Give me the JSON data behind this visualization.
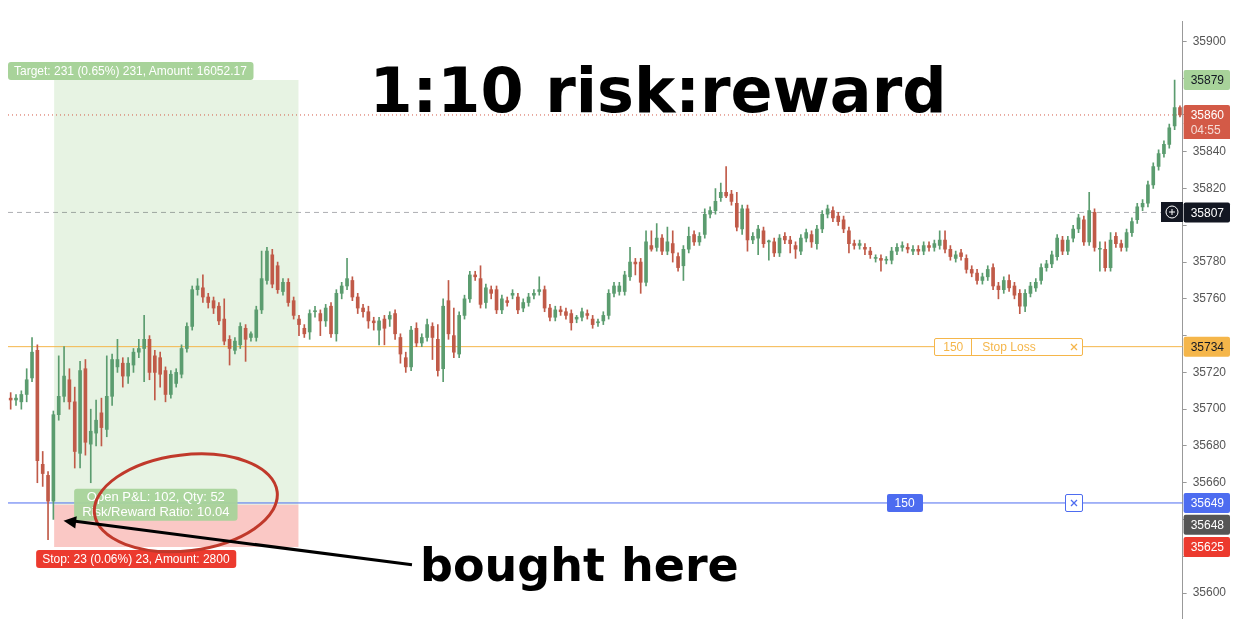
{
  "chart_data": {
    "type": "candlestick",
    "title": "1:10 risk:reward",
    "categories": [
      null,
      null,
      null,
      null,
      null,
      null,
      null,
      null,
      null,
      null,
      null,
      null,
      null,
      null,
      null,
      null,
      null,
      null,
      null,
      null,
      null,
      null,
      null,
      null,
      null,
      null,
      null,
      null,
      null,
      null,
      null,
      null,
      null,
      null,
      null,
      null,
      null,
      null,
      null,
      null,
      null,
      null,
      null,
      null,
      null,
      null,
      null,
      null,
      null,
      null,
      null,
      null,
      null,
      null,
      null,
      null,
      null,
      null,
      null,
      null,
      null,
      null,
      null,
      null,
      null,
      null,
      null,
      null,
      null,
      null,
      null,
      null,
      null,
      null,
      null,
      null,
      null,
      null,
      null,
      null,
      null,
      null,
      null,
      null,
      null,
      null,
      null,
      null,
      null,
      null,
      null,
      null,
      null,
      null,
      null,
      null,
      null,
      null,
      null,
      null,
      null,
      null,
      null,
      null,
      null,
      null,
      null,
      null,
      null,
      null,
      null,
      null,
      null,
      null,
      null,
      null,
      null,
      null,
      null,
      null,
      null,
      null,
      null,
      null,
      null,
      null,
      null,
      null,
      null,
      null,
      null,
      null,
      null,
      null,
      null,
      null,
      null,
      null,
      null,
      null,
      null,
      null,
      null,
      null,
      null,
      null,
      null,
      null,
      null,
      null,
      null,
      null,
      null,
      null,
      null,
      null,
      null,
      null,
      null,
      null,
      null,
      null,
      null,
      null,
      null,
      null,
      null,
      null,
      null,
      null,
      null,
      null,
      null,
      null,
      null,
      null,
      null,
      null,
      null,
      null,
      null,
      null,
      null,
      null,
      null,
      null,
      null,
      null,
      null,
      null,
      null,
      null,
      null,
      null,
      null,
      null,
      null,
      null,
      null,
      null,
      null,
      null,
      null,
      null,
      null,
      null,
      null,
      null,
      null,
      null,
      null,
      null,
      null,
      null,
      null,
      null,
      null,
      null,
      null,
      null
    ],
    "ohlc": [
      [
        35706,
        35709,
        35700,
        35705
      ],
      [
        35705,
        35708,
        35702,
        35706
      ],
      [
        35704,
        35710,
        35700,
        35708
      ],
      [
        35708,
        35722,
        35704,
        35716
      ],
      [
        35717,
        35739,
        35715,
        35731
      ],
      [
        35732,
        35735,
        35660,
        35672
      ],
      [
        35670,
        35677,
        35658,
        35665
      ],
      [
        35664,
        35666,
        35629,
        35650
      ],
      [
        35650,
        35699,
        35640,
        35697
      ],
      [
        35697,
        35729,
        35694,
        35707
      ],
      [
        35707,
        35734,
        35704,
        35718
      ],
      [
        35716,
        35722,
        35700,
        35704
      ],
      [
        35704,
        35712,
        35668,
        35677
      ],
      [
        35676,
        35726,
        35668,
        35721
      ],
      [
        35722,
        35727,
        35675,
        35682
      ],
      [
        35681,
        35700,
        35660,
        35688
      ],
      [
        35687,
        35705,
        35680,
        35694
      ],
      [
        35698,
        35706,
        35680,
        35690
      ],
      [
        35689,
        35729,
        35685,
        35707
      ],
      [
        35707,
        35730,
        35702,
        35727
      ],
      [
        35723,
        35738,
        35720,
        35727
      ],
      [
        35725,
        35728,
        35712,
        35718
      ],
      [
        35718,
        35728,
        35714,
        35725
      ],
      [
        35724,
        35733,
        35720,
        35731
      ],
      [
        35731,
        35738,
        35728,
        35733
      ],
      [
        35733,
        35751,
        35715,
        35738
      ],
      [
        35738,
        35740,
        35716,
        35720
      ],
      [
        35729,
        35732,
        35705,
        35720
      ],
      [
        35728,
        35731,
        35712,
        35719
      ],
      [
        35721,
        35723,
        35704,
        35708
      ],
      [
        35708,
        35721,
        35706,
        35719
      ],
      [
        35714,
        35722,
        35712,
        35720
      ],
      [
        35719,
        35735,
        35717,
        35733
      ],
      [
        35733,
        35747,
        35731,
        35745
      ],
      [
        35745,
        35767,
        35743,
        35765
      ],
      [
        35765,
        35771,
        35762,
        35767
      ],
      [
        35766,
        35773,
        35758,
        35761
      ],
      [
        35761,
        35763,
        35755,
        35758
      ],
      [
        35759,
        35761,
        35752,
        35755
      ],
      [
        35756,
        35758,
        35746,
        35748
      ],
      [
        35749,
        35760,
        35735,
        35737
      ],
      [
        35738,
        35740,
        35724,
        35733
      ],
      [
        35732,
        35739,
        35730,
        35737
      ],
      [
        35735,
        35747,
        35733,
        35745
      ],
      [
        35744,
        35746,
        35726,
        35738
      ],
      [
        35739,
        35742,
        35737,
        35741
      ],
      [
        35739,
        35756,
        35737,
        35754
      ],
      [
        35754,
        35786,
        35752,
        35771
      ],
      [
        35770,
        35788,
        35768,
        35786
      ],
      [
        35784,
        35787,
        35766,
        35768
      ],
      [
        35778,
        35780,
        35763,
        35765
      ],
      [
        35764,
        35771,
        35762,
        35769
      ],
      [
        35769,
        35771,
        35756,
        35758
      ],
      [
        35759,
        35761,
        35749,
        35751
      ],
      [
        35749,
        35751,
        35740,
        35746
      ],
      [
        35744,
        35746,
        35739,
        35741
      ],
      [
        35742,
        35754,
        35738,
        35752
      ],
      [
        35753,
        35756,
        35750,
        35753
      ],
      [
        35752,
        35754,
        35740,
        35748
      ],
      [
        35748,
        35757,
        35745,
        35755
      ],
      [
        35756,
        35758,
        35739,
        35741
      ],
      [
        35741,
        35765,
        35737,
        35763
      ],
      [
        35763,
        35769,
        35760,
        35767
      ],
      [
        35767,
        35782,
        35765,
        35771
      ],
      [
        35770,
        35772,
        35759,
        35761
      ],
      [
        35761,
        35763,
        35752,
        35755
      ],
      [
        35755,
        35757,
        35750,
        35753
      ],
      [
        35753,
        35756,
        35744,
        35748
      ],
      [
        35748,
        35750,
        35743,
        35747
      ],
      [
        35743,
        35750,
        35735,
        35748
      ],
      [
        35749,
        35751,
        35735,
        35744
      ],
      [
        35749,
        35753,
        35745,
        35751
      ],
      [
        35752,
        35754,
        35738,
        35741
      ],
      [
        35739,
        35741,
        35725,
        35730
      ],
      [
        35728,
        35731,
        35720,
        35723
      ],
      [
        35723,
        35745,
        35721,
        35743
      ],
      [
        35744,
        35747,
        35734,
        35736
      ],
      [
        35736,
        35741,
        35734,
        35739
      ],
      [
        35739,
        35749,
        35737,
        35746
      ],
      [
        35745,
        35747,
        35727,
        35739
      ],
      [
        35738,
        35746,
        35718,
        35721
      ],
      [
        35722,
        35760,
        35715,
        35756
      ],
      [
        35759,
        35770,
        35738,
        35741
      ],
      [
        35740,
        35755,
        35728,
        35731
      ],
      [
        35730,
        35753,
        35728,
        35751
      ],
      [
        35751,
        35762,
        35749,
        35760
      ],
      [
        35760,
        35775,
        35758,
        35773
      ],
      [
        35773,
        35775,
        35770,
        35772
      ],
      [
        35771,
        35778,
        35755,
        35757
      ],
      [
        35758,
        35768,
        35755,
        35766
      ],
      [
        35765,
        35767,
        35760,
        35763
      ],
      [
        35765,
        35767,
        35752,
        35754
      ],
      [
        35754,
        35762,
        35752,
        35760
      ],
      [
        35759,
        35761,
        35756,
        35758
      ],
      [
        35762,
        35765,
        35760,
        35763
      ],
      [
        35761,
        35763,
        35752,
        35754
      ],
      [
        35755,
        35760,
        35753,
        35758
      ],
      [
        35758,
        35763,
        35756,
        35761
      ],
      [
        35762,
        35765,
        35760,
        35763
      ],
      [
        35764,
        35772,
        35762,
        35765
      ],
      [
        35765,
        35767,
        35753,
        35755
      ],
      [
        35755,
        35757,
        35748,
        35750
      ],
      [
        35750,
        35756,
        35748,
        35754
      ],
      [
        35754,
        35756,
        35751,
        35753
      ],
      [
        35753,
        35755,
        35749,
        35751
      ],
      [
        35752,
        35754,
        35743,
        35747
      ],
      [
        35749,
        35751,
        35747,
        35750
      ],
      [
        35750,
        35755,
        35748,
        35753
      ],
      [
        35752,
        35754,
        35749,
        35751
      ],
      [
        35749,
        35751,
        35744,
        35746
      ],
      [
        35747,
        35749,
        35745,
        35747
      ],
      [
        35748,
        35753,
        35746,
        35751
      ],
      [
        35751,
        35765,
        35749,
        35763
      ],
      [
        35763,
        35769,
        35761,
        35767
      ],
      [
        35764,
        35769,
        35762,
        35767
      ],
      [
        35764,
        35775,
        35762,
        35773
      ],
      [
        35772,
        35788,
        35770,
        35780
      ],
      [
        35780,
        35782,
        35773,
        35779
      ],
      [
        35780,
        35782,
        35763,
        35769
      ],
      [
        35769,
        35797,
        35767,
        35791
      ],
      [
        35789,
        35797,
        35786,
        35787
      ],
      [
        35788,
        35801,
        35786,
        35793
      ],
      [
        35793,
        35795,
        35784,
        35786
      ],
      [
        35786,
        35799,
        35784,
        35791
      ],
      [
        35790,
        35797,
        35780,
        35785
      ],
      [
        35783,
        35785,
        35775,
        35777
      ],
      [
        35778,
        35789,
        35770,
        35787
      ],
      [
        35787,
        35799,
        35785,
        35794
      ],
      [
        35795,
        35797,
        35789,
        35791
      ],
      [
        35791,
        35796,
        35789,
        35794
      ],
      [
        35795,
        35809,
        35793,
        35806
      ],
      [
        35806,
        35810,
        35804,
        35808
      ],
      [
        35808,
        35820,
        35806,
        35813
      ],
      [
        35815,
        35823,
        35813,
        35818
      ],
      [
        35818,
        35832,
        35815,
        35816
      ],
      [
        35817,
        35819,
        35811,
        35813
      ],
      [
        35812,
        35818,
        35797,
        35799
      ],
      [
        35798,
        35811,
        35795,
        35809
      ],
      [
        35809,
        35811,
        35786,
        35792
      ],
      [
        35792,
        35796,
        35790,
        35794
      ],
      [
        35793,
        35800,
        35784,
        35798
      ],
      [
        35797,
        35799,
        35788,
        35790
      ],
      [
        35791,
        35792,
        35781,
        35791
      ],
      [
        35791,
        35793,
        35783,
        35785
      ],
      [
        35785,
        35795,
        35783,
        35793
      ],
      [
        35794,
        35796,
        35790,
        35792
      ],
      [
        35792,
        35794,
        35785,
        35790
      ],
      [
        35789,
        35791,
        35782,
        35787
      ],
      [
        35786,
        35795,
        35784,
        35793
      ],
      [
        35793,
        35798,
        35791,
        35796
      ],
      [
        35795,
        35797,
        35788,
        35791
      ],
      [
        35790,
        35800,
        35787,
        35798
      ],
      [
        35798,
        35808,
        35796,
        35806
      ],
      [
        35806,
        35811,
        35804,
        35809
      ],
      [
        35808,
        35810,
        35802,
        35804
      ],
      [
        35805,
        35807,
        35800,
        35802
      ],
      [
        35803,
        35805,
        35796,
        35798
      ],
      [
        35797,
        35799,
        35785,
        35790
      ],
      [
        35790,
        35792,
        35787,
        35789
      ],
      [
        35789,
        35792,
        35787,
        35790
      ],
      [
        35788,
        35790,
        35784,
        35787
      ],
      [
        35786,
        35788,
        35782,
        35784
      ],
      [
        35782,
        35784,
        35780,
        35782
      ],
      [
        35782,
        35784,
        35775,
        35781
      ],
      [
        35781,
        35783,
        35779,
        35781
      ],
      [
        35781,
        35788,
        35779,
        35786
      ],
      [
        35786,
        35790,
        35784,
        35788
      ],
      [
        35788,
        35791,
        35786,
        35789
      ],
      [
        35788,
        35790,
        35785,
        35787
      ],
      [
        35786,
        35789,
        35784,
        35787
      ],
      [
        35787,
        35789,
        35784,
        35786
      ],
      [
        35786,
        35791,
        35784,
        35789
      ],
      [
        35789,
        35791,
        35786,
        35788
      ],
      [
        35788,
        35792,
        35786,
        35790
      ],
      [
        35789,
        35797,
        35787,
        35792
      ],
      [
        35792,
        35797,
        35785,
        35787
      ],
      [
        35787,
        35789,
        35781,
        35783
      ],
      [
        35782,
        35786,
        35780,
        35784
      ],
      [
        35785,
        35787,
        35781,
        35783
      ],
      [
        35782,
        35784,
        35774,
        35776
      ],
      [
        35776,
        35778,
        35772,
        35774
      ],
      [
        35774,
        35776,
        35768,
        35770
      ],
      [
        35770,
        35774,
        35768,
        35772
      ],
      [
        35772,
        35778,
        35770,
        35776
      ],
      [
        35777,
        35779,
        35765,
        35767
      ],
      [
        35767,
        35769,
        35760,
        35765
      ],
      [
        35765,
        35772,
        35763,
        35770
      ],
      [
        35770,
        35773,
        35764,
        35766
      ],
      [
        35767,
        35769,
        35760,
        35762
      ],
      [
        35763,
        35765,
        35752,
        35756
      ],
      [
        35756,
        35765,
        35753,
        35763
      ],
      [
        35763,
        35769,
        35761,
        35767
      ],
      [
        35766,
        35771,
        35764,
        35769
      ],
      [
        35770,
        35779,
        35768,
        35777
      ],
      [
        35777,
        35781,
        35775,
        35779
      ],
      [
        35779,
        35786,
        35777,
        35784
      ],
      [
        35783,
        35795,
        35781,
        35793
      ],
      [
        35792,
        35794,
        35784,
        35786
      ],
      [
        35786,
        35794,
        35784,
        35792
      ],
      [
        35793,
        35800,
        35791,
        35798
      ],
      [
        35798,
        35806,
        35796,
        35804
      ],
      [
        35803,
        35805,
        35789,
        35791
      ],
      [
        35791,
        35818,
        35789,
        35808
      ],
      [
        35807,
        35809,
        35786,
        35788
      ],
      [
        35787,
        35791,
        35775,
        35787
      ],
      [
        35787,
        35791,
        35775,
        35777
      ],
      [
        35777,
        35796,
        35775,
        35792
      ],
      [
        35794,
        35796,
        35788,
        35790
      ],
      [
        35790,
        35792,
        35786,
        35788
      ],
      [
        35788,
        35798,
        35786,
        35796
      ],
      [
        35796,
        35804,
        35794,
        35802
      ],
      [
        35803,
        35812,
        35801,
        35810
      ],
      [
        35810,
        35814,
        35808,
        35812
      ],
      [
        35812,
        35824,
        35810,
        35822
      ],
      [
        35822,
        35834,
        35820,
        35832
      ],
      [
        35832,
        35841,
        35830,
        35839
      ],
      [
        35839,
        35846,
        35837,
        35844
      ],
      [
        35844,
        35855,
        35842,
        35853
      ],
      [
        35854,
        35879,
        35852,
        35864
      ],
      [
        35864,
        35865,
        35859,
        35860
      ]
    ],
    "ylim": [
      35586,
      35911
    ],
    "yticks": [
      35600,
      {
        "value": 35620,
        "label": null
      },
      {
        "value": 35640,
        "label": null
      },
      35660,
      35680,
      35700,
      35720,
      {
        "value": 35740,
        "label": null
      },
      35760,
      35780,
      {
        "value": 35800,
        "label": null
      },
      35820,
      35840,
      35860,
      {
        "value": 35880,
        "label": null
      },
      35900
    ],
    "ref_lines": [
      {
        "axis": "y",
        "value": 35860,
        "label": "35860",
        "color": "#d35a47",
        "line_style": "dotted"
      },
      {
        "axis": "y",
        "value": 35807,
        "label": "35807",
        "color": "#131722",
        "line_style": "dashed"
      },
      {
        "axis": "y",
        "value": 35734,
        "label": "35734",
        "color": "#f5b64a",
        "line_style": "solid"
      },
      {
        "axis": "y",
        "value": 35649,
        "label": "35649",
        "color": "#4d6cf0",
        "line_style": "solid"
      }
    ],
    "bands": [
      {
        "axis": "y",
        "from": 35648,
        "to": 35879,
        "label": "Target: 231 (0.65%) 231, Amount: 16052.17",
        "color": "#a8d39a"
      },
      {
        "axis": "y",
        "from": 35625,
        "to": 35648,
        "label": "Stop: 23 (0.06%) 23, Amount: 2800",
        "color": "#ec3a2e"
      }
    ],
    "annotations": [
      "Open P&L: 102, Qty: 52",
      "Risk/Reward Ratio: 10.04",
      "bought here",
      "04:55",
      "150",
      "Stop Loss",
      "150",
      "35879",
      "35648",
      "35625"
    ]
  }
}
